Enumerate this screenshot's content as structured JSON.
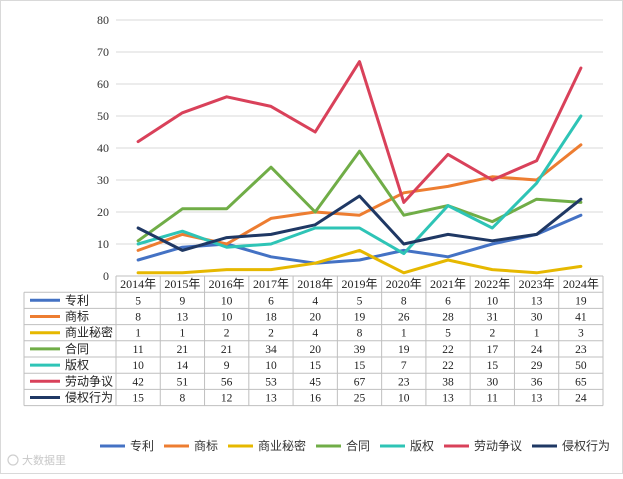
{
  "chart_data": {
    "type": "line",
    "categories": [
      "2014年",
      "2015年",
      "2016年",
      "2017年",
      "2018年",
      "2019年",
      "2020年",
      "2021年",
      "2022年",
      "2023年",
      "2024年"
    ],
    "ylim": [
      0,
      80
    ],
    "yticks": [
      0,
      10,
      20,
      30,
      40,
      50,
      60,
      70,
      80
    ],
    "grid": true,
    "legend_position": "bottom",
    "data_table": true,
    "series": [
      {
        "name": "专利",
        "color": "#4472c4",
        "values": [
          5,
          9,
          10,
          6,
          4,
          5,
          8,
          6,
          10,
          13,
          19
        ]
      },
      {
        "name": "商标",
        "color": "#ed7d31",
        "values": [
          8,
          13,
          10,
          18,
          20,
          19,
          26,
          28,
          31,
          30,
          41
        ]
      },
      {
        "name": "商业秘密",
        "color": "#e6b800",
        "values": [
          1,
          1,
          2,
          2,
          4,
          8,
          1,
          5,
          2,
          1,
          3
        ]
      },
      {
        "name": "合同",
        "color": "#70ad47",
        "values": [
          11,
          21,
          21,
          34,
          20,
          39,
          19,
          22,
          17,
          24,
          23
        ]
      },
      {
        "name": "版权",
        "color": "#2ec4b6",
        "values": [
          10,
          14,
          9,
          10,
          15,
          15,
          7,
          22,
          15,
          29,
          50
        ]
      },
      {
        "name": "劳动争议",
        "color": "#d9415a",
        "values": [
          42,
          51,
          56,
          53,
          45,
          67,
          23,
          38,
          30,
          36,
          65
        ]
      },
      {
        "name": "侵权行为",
        "color": "#1f3864",
        "values": [
          15,
          8,
          12,
          13,
          16,
          25,
          10,
          13,
          11,
          13,
          24
        ]
      }
    ]
  },
  "watermark": "大数据里"
}
